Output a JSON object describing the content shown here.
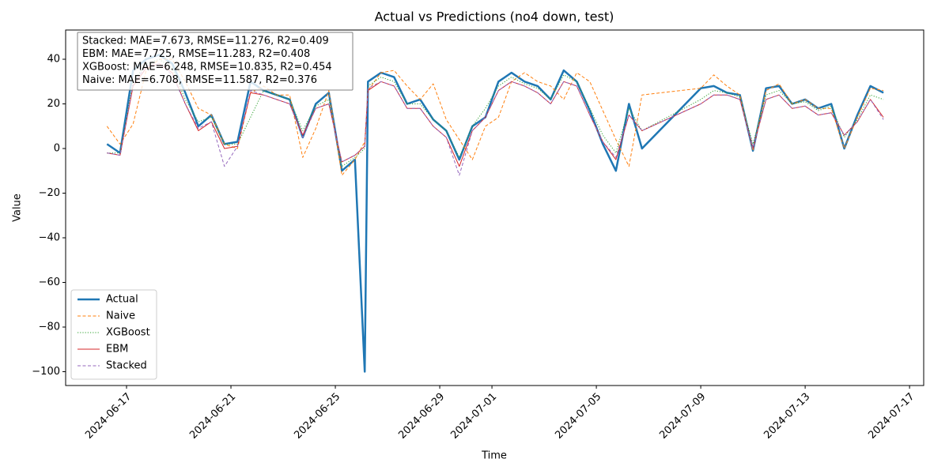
{
  "chart_data": {
    "type": "line",
    "title": "Actual vs Predictions (no4 down, test)",
    "xlabel": "Time",
    "ylabel": "Value",
    "annotation": [
      "Stacked: MAE=7.673, RMSE=11.276, R2=0.409",
      "EBM: MAE=7.725, RMSE=11.283, R2=0.408",
      "XGBoost: MAE=6.248, RMSE=10.835, R2=0.454",
      "Naive: MAE=6.708, RMSE=11.587, R2=0.376"
    ],
    "legend": "lower left",
    "xlim": [
      "2024-06-14T16:00",
      "2024-07-17T13:00"
    ],
    "xticks": [
      "2024-06-17",
      "2024-06-21",
      "2024-06-25",
      "2024-06-29",
      "2024-07-01",
      "2024-07-05",
      "2024-07-09",
      "2024-07-13",
      "2024-07-17"
    ],
    "ylim": [
      -106.2,
      53.1
    ],
    "yticks": [
      {
        "value": -100,
        "label": "−100"
      },
      {
        "value": -80,
        "label": "−80"
      },
      {
        "value": -60,
        "label": "−60"
      },
      {
        "value": -40,
        "label": "−40"
      },
      {
        "value": -20,
        "label": "−20"
      },
      0,
      20,
      40
    ],
    "x": [
      "2024-06-16T06:00",
      "2024-06-16T18:00",
      "2024-06-17T06:00",
      "2024-06-17T18:00",
      "2024-06-18T06:00",
      "2024-06-18T18:00",
      "2024-06-19T06:00",
      "2024-06-19T18:00",
      "2024-06-20T06:00",
      "2024-06-20T18:00",
      "2024-06-21T06:00",
      "2024-06-21T18:00",
      "2024-06-22T06:00",
      "2024-06-22T18:00",
      "2024-06-23T06:00",
      "2024-06-23T18:00",
      "2024-06-24T06:00",
      "2024-06-24T18:00",
      "2024-06-25T06:00",
      "2024-06-25T18:00",
      "2024-06-26T03:00",
      "2024-06-26T06:00",
      "2024-06-26T18:00",
      "2024-06-27T06:00",
      "2024-06-27T18:00",
      "2024-06-28T06:00",
      "2024-06-28T18:00",
      "2024-06-29T06:00",
      "2024-06-29T18:00",
      "2024-06-30T06:00",
      "2024-06-30T18:00",
      "2024-07-01T06:00",
      "2024-07-01T18:00",
      "2024-07-02T06:00",
      "2024-07-02T18:00",
      "2024-07-03T06:00",
      "2024-07-03T18:00",
      "2024-07-04T06:00",
      "2024-07-04T18:00",
      "2024-07-05T06:00",
      "2024-07-05T18:00",
      "2024-07-06T06:00",
      "2024-07-06T18:00",
      "2024-07-09T00:00",
      "2024-07-09T12:00",
      "2024-07-10T00:00",
      "2024-07-10T12:00",
      "2024-07-11T00:00",
      "2024-07-11T12:00",
      "2024-07-12T00:00",
      "2024-07-12T12:00",
      "2024-07-13T00:00",
      "2024-07-13T12:00",
      "2024-07-14T00:00",
      "2024-07-14T12:00",
      "2024-07-15T00:00",
      "2024-07-15T12:00",
      "2024-07-16T00:00"
    ],
    "series": [
      {
        "name": "Actual",
        "color": "#1f77b4",
        "linestyle": "solid",
        "linewidth": 2.5,
        "values": [
          2,
          -2,
          35,
          40,
          42,
          38,
          25,
          10,
          15,
          2,
          3,
          30,
          26,
          24,
          22,
          5,
          20,
          25,
          -10,
          -5,
          -100,
          30,
          34,
          32,
          20,
          22,
          13,
          8,
          -5,
          10,
          14,
          30,
          34,
          30,
          28,
          22,
          35,
          30,
          17,
          2,
          -10,
          20,
          0,
          27,
          28,
          25,
          24,
          -1,
          27,
          28,
          20,
          22,
          18,
          20,
          0,
          15,
          28,
          25
        ]
      },
      {
        "name": "Naive",
        "color": "#ff7f0e",
        "linestyle": "dashed",
        "linewidth": 1,
        "values": [
          10,
          2,
          11,
          35,
          40,
          40,
          30,
          18,
          15,
          2,
          0,
          25,
          28,
          24,
          24,
          -4,
          9,
          26,
          -12,
          -5,
          3,
          26,
          34,
          35,
          28,
          22,
          29,
          13,
          4,
          -5,
          10,
          14,
          30,
          34,
          30,
          28,
          22,
          34,
          30,
          17,
          4,
          -8,
          24,
          27,
          33,
          28,
          24,
          -1,
          26,
          29,
          20,
          22,
          18,
          18,
          0,
          14,
          27,
          26
        ]
      },
      {
        "name": "XGBoost",
        "color": "#2ca02c",
        "linestyle": "dotted",
        "linewidth": 1,
        "values": [
          -2,
          -2,
          30,
          38,
          40,
          36,
          22,
          12,
          14,
          2,
          2,
          14,
          26,
          24,
          22,
          8,
          19,
          22,
          -8,
          -4,
          0,
          28,
          32,
          30,
          20,
          20,
          13,
          8,
          -4,
          10,
          18,
          28,
          32,
          29,
          27,
          22,
          33,
          30,
          18,
          6,
          -2,
          18,
          8,
          22,
          26,
          25,
          23,
          2,
          24,
          26,
          20,
          21,
          17,
          19,
          5,
          13,
          24,
          22
        ]
      },
      {
        "name": "EBM",
        "color": "#d62728",
        "linestyle": "solid",
        "linewidth": 1,
        "values": [
          -2,
          -3,
          28,
          36,
          38,
          34,
          20,
          8,
          12,
          0,
          1,
          25,
          24,
          22,
          20,
          6,
          18,
          20,
          -6,
          -3,
          1,
          26,
          30,
          28,
          18,
          18,
          10,
          5,
          -8,
          8,
          14,
          26,
          30,
          28,
          25,
          20,
          30,
          28,
          15,
          3,
          -5,
          15,
          8,
          20,
          24,
          24,
          22,
          0,
          22,
          24,
          18,
          19,
          15,
          16,
          6,
          12,
          22,
          14
        ]
      },
      {
        "name": "Stacked",
        "color": "#9467bd",
        "linestyle": "dashed",
        "linewidth": 1,
        "values": [
          -2,
          -3,
          29,
          37,
          38,
          33,
          20,
          9,
          12,
          -8,
          1,
          26,
          24,
          22,
          20,
          5,
          18,
          20,
          -6,
          -3,
          1,
          27,
          30,
          28,
          18,
          18,
          10,
          5,
          -12,
          8,
          14,
          26,
          30,
          28,
          25,
          20,
          30,
          28,
          15,
          3,
          -4,
          15,
          8,
          20,
          24,
          24,
          22,
          0,
          22,
          24,
          18,
          19,
          15,
          16,
          6,
          12,
          22,
          13
        ]
      }
    ]
  }
}
